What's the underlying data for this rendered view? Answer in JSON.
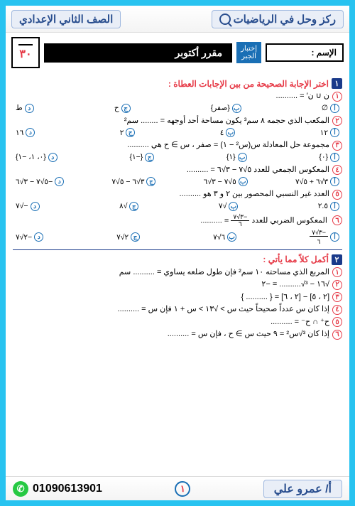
{
  "header": {
    "site": "ركز وحل في الرياضيات",
    "grade": "الصف الثاني الإعدادي"
  },
  "row2": {
    "name_label": "الإسم :",
    "tag_l1": "إختبار",
    "tag_l2": "الجبر",
    "title": "مقرر أكتوبر",
    "score": "٣٠"
  },
  "section1": {
    "num": "١",
    "title": "اختر الإجابة الصحيحة من بين الإجابات العطاة :"
  },
  "q1": {
    "n": "١",
    "text": "ن ∪ ن′ = ..........",
    "a": "∅",
    "b": "{صفر}",
    "c": "ح",
    "d": "ط"
  },
  "q2": {
    "n": "٢",
    "text": "المكعب الذي حجمه ٨ سم³ يكون مساحة أحد أوجهه = ........ سم²",
    "a": "١٢",
    "b": "٤",
    "c": "٢",
    "d": "١٦"
  },
  "q3": {
    "n": "٣",
    "text": "مجموعة حل المعادلة  س(س² − ١) = صفر  ، س ∋ ح هي ..........",
    "a": "{٠}",
    "b": "{١}",
    "c": "{−١}",
    "d": "{٠، ١، −١}"
  },
  "q4": {
    "n": "٤",
    "text": "المعكوس الجمعي للعدد  ٥√٧ − ٣√٦  = ..........",
    "a": "٣√٦ + ٥√٧",
    "b": "٥√٧ − ٣√٦",
    "c": "٣√٦ − ٥√٧",
    "d": "−٥√٧ − ٣√٦"
  },
  "q5": {
    "n": "٥",
    "text": "العدد غير النسبي المحصور بين ٢ و ٣ هو ..........",
    "a": "٢.٥",
    "b": "√٧",
    "c": "√٨",
    "d": "−√٧"
  },
  "q6": {
    "n": "٦",
    "text_a": "المعكوس الضربي للعدد",
    "text_b": "= ..........",
    "a_top": "−٣√٧",
    "a_bot": "٦",
    "b": "٦√٧",
    "c": "٢√٧",
    "d": "−٢√٧"
  },
  "section2": {
    "num": "٢",
    "title": "أكمل كلاً مما يأتي :"
  },
  "f1": {
    "n": "١",
    "text": "المربع الذي مساحته ١٠ سم² فإن طول ضلعه يساوي = .......... سم"
  },
  "f2": {
    "n": "٢",
    "text": "√١٦ − ³√.......... = −٢"
  },
  "f3": {
    "n": "٣",
    "text": "[٢ ، ٥] − [٢ ، ٦] = { .......... }"
  },
  "f4": {
    "n": "٤",
    "text": "إذا كان س عدداً صحيحاً حيث س > √١٣ > س + ١  فإن س = .........."
  },
  "f5": {
    "n": "٥",
    "text": "ح⁺ ∩ ح⁻ = .........."
  },
  "f6": {
    "n": "٦",
    "text": "إذا كان ³√س² = ٩  حيث س ∋ ح ، فإن س = .........."
  },
  "footer": {
    "teacher": "أ/ عمرو علي",
    "page": "١",
    "phone": "01090613901"
  },
  "colors": {
    "blue": "#28c3f0",
    "navy": "#1a3a8a",
    "red": "#e63946",
    "link": "#1a6fb5"
  }
}
